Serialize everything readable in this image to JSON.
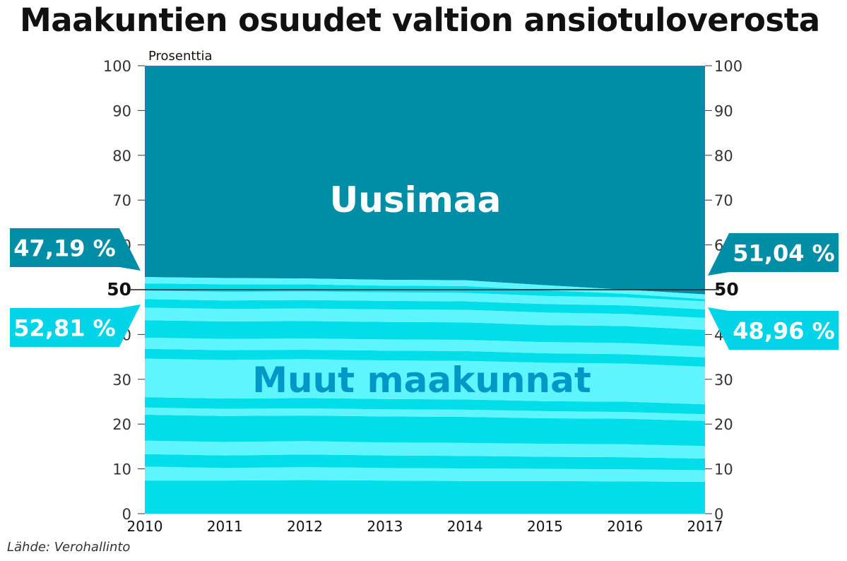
{
  "title": "Maakuntien osuudet valtion ansiotuloverosta",
  "source": "Lähde: Verohallinto",
  "colors": {
    "uusimaa": "#008ea6",
    "stripe_dark": "#00dfe9",
    "stripe_light": "#5ff5ff",
    "label_uusimaa_bg": "#008ea6",
    "label_muut_bg": "#00d4e8",
    "area_label_uusimaa": "#ffffff",
    "area_label_muut": "#0098c6",
    "axis_text": "#333333",
    "reference_line": "#1a1a1a"
  },
  "chart_data": {
    "type": "area",
    "stacked": true,
    "percent_stacked": true,
    "ylabel": "Prosenttia",
    "xlabel": "",
    "x": [
      "2010",
      "2011",
      "2012",
      "2013",
      "2014",
      "2015",
      "2016",
      "2017"
    ],
    "ylim": [
      0,
      100
    ],
    "y_ticks": [
      "0",
      "10",
      "20",
      "30",
      "40",
      "50",
      "60",
      "70",
      "80",
      "90",
      "100"
    ],
    "highlight_tick": "50",
    "series": [
      {
        "name": "Muut maakunnat",
        "values": [
          52.81,
          52.6,
          52.5,
          52.2,
          52.1,
          51.0,
          50.0,
          48.96
        ]
      },
      {
        "name": "Uusimaa",
        "values": [
          47.19,
          47.4,
          47.5,
          47.8,
          47.9,
          49.0,
          50.0,
          51.04
        ]
      }
    ],
    "region_boundaries": [
      [
        7.4,
        7.4,
        7.5,
        7.4,
        7.3,
        7.3,
        7.2,
        7.1
      ],
      [
        10.5,
        10.2,
        10.4,
        10.2,
        10.1,
        10.0,
        9.9,
        9.7
      ],
      [
        13.3,
        13.0,
        13.2,
        13.0,
        12.9,
        12.7,
        12.6,
        12.3
      ],
      [
        16.3,
        16.0,
        16.2,
        15.9,
        15.8,
        15.6,
        15.5,
        15.1
      ],
      [
        22.1,
        21.8,
        21.9,
        21.7,
        21.6,
        21.3,
        21.2,
        20.7
      ],
      [
        23.7,
        23.4,
        23.5,
        23.3,
        23.2,
        22.9,
        22.7,
        22.2
      ],
      [
        26.0,
        25.7,
        25.8,
        25.6,
        25.5,
        25.1,
        25.0,
        24.4
      ],
      [
        34.6,
        34.3,
        34.5,
        34.2,
        34.1,
        33.7,
        33.5,
        32.8
      ],
      [
        36.8,
        36.5,
        36.6,
        36.4,
        36.3,
        35.8,
        35.6,
        34.9
      ],
      [
        39.3,
        39.0,
        39.1,
        38.9,
        38.8,
        38.3,
        38.1,
        37.3
      ],
      [
        43.2,
        42.9,
        43.0,
        42.8,
        42.7,
        42.1,
        41.9,
        41.0
      ],
      [
        46.0,
        45.7,
        45.8,
        45.6,
        45.5,
        44.9,
        44.6,
        43.7
      ],
      [
        47.9,
        47.6,
        47.7,
        47.5,
        47.4,
        46.8,
        46.5,
        45.6
      ],
      [
        49.8,
        49.5,
        49.6,
        49.4,
        49.3,
        48.6,
        48.3,
        47.4
      ],
      [
        51.4,
        51.2,
        51.2,
        50.9,
        50.8,
        49.9,
        49.1,
        47.9
      ]
    ],
    "area_labels": [
      "Uusimaa",
      "Muut maakunnat"
    ],
    "callouts": {
      "uusimaa_first": "47,19 %",
      "muut_first": "52,81 %",
      "uusimaa_last": "51,04 %",
      "muut_last": "48,96 %"
    }
  }
}
